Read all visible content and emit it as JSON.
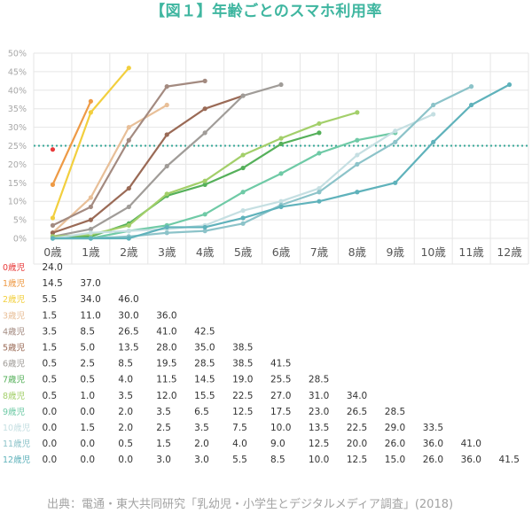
{
  "title": "【図１】年齢ごとのスマホ利用率",
  "source": "出典：電通・東大共同研究「乳幼児・小学生とデジタルメディア調査」(2018)",
  "chart_data": {
    "type": "line",
    "categories": [
      "0歳",
      "1歳",
      "2歳",
      "3歳",
      "4歳",
      "5歳",
      "6歳",
      "7歳",
      "8歳",
      "9歳",
      "10歳",
      "11歳",
      "12歳"
    ],
    "y_ticks": [
      "0%",
      "5%",
      "10%",
      "15%",
      "20%",
      "25%",
      "30%",
      "35%",
      "40%",
      "45%",
      "50%"
    ],
    "ylim": [
      0,
      50
    ],
    "reference_line": 25,
    "grid": true,
    "series": [
      {
        "name": "0歳児",
        "color": "#e83a3a",
        "values": [
          24.0,
          null,
          null,
          null,
          null,
          null,
          null,
          null,
          null,
          null,
          null,
          null,
          null
        ],
        "labels": [
          "24.0",
          "",
          "",
          "",
          "",
          "",
          "",
          "",
          "",
          "",
          "",
          "",
          ""
        ]
      },
      {
        "name": "1歳児",
        "color": "#ee9a45",
        "values": [
          14.5,
          37.0,
          null,
          null,
          null,
          null,
          null,
          null,
          null,
          null,
          null,
          null,
          null
        ],
        "labels": [
          "14.5",
          "37.0",
          "",
          "",
          "",
          "",
          "",
          "",
          "",
          "",
          "",
          "",
          ""
        ]
      },
      {
        "name": "2歳児",
        "color": "#f2cf3e",
        "values": [
          5.5,
          34.0,
          46.0,
          null,
          null,
          null,
          null,
          null,
          null,
          null,
          null,
          null,
          null
        ],
        "labels": [
          "5.5",
          "34.0",
          "46.0",
          "",
          "",
          "",
          "",
          "",
          "",
          "",
          "",
          "",
          ""
        ]
      },
      {
        "name": "3歳児",
        "color": "#e8bf98",
        "values": [
          1.5,
          11.0,
          30.0,
          36.0,
          null,
          null,
          null,
          null,
          null,
          null,
          null,
          null,
          null
        ],
        "labels": [
          "1.5",
          "11.0",
          "30.0",
          "36.0",
          "",
          "",
          "",
          "",
          "",
          "",
          "",
          "",
          ""
        ]
      },
      {
        "name": "4歳児",
        "color": "#a38a80",
        "values": [
          3.5,
          8.5,
          26.5,
          41.0,
          42.5,
          null,
          null,
          null,
          null,
          null,
          null,
          null,
          null
        ],
        "labels": [
          "3.5",
          "8.5",
          "26.5",
          "41.0",
          "42.5",
          "",
          "",
          "",
          "",
          "",
          "",
          "",
          ""
        ]
      },
      {
        "name": "5歳児",
        "color": "#9a6a56",
        "values": [
          1.5,
          5.0,
          13.5,
          28.0,
          35.0,
          38.5,
          null,
          null,
          null,
          null,
          null,
          null,
          null
        ],
        "labels": [
          "1.5",
          "5.0",
          "13.5",
          "28.0",
          "35.0",
          "38.5",
          "",
          "",
          "",
          "",
          "",
          "",
          ""
        ]
      },
      {
        "name": "6歳児",
        "color": "#a09c98",
        "values": [
          0.5,
          2.5,
          8.5,
          19.5,
          28.5,
          38.5,
          41.5,
          null,
          null,
          null,
          null,
          null,
          null
        ],
        "labels": [
          "0.5",
          "2.5",
          "8.5",
          "19.5",
          "28.5",
          "38.5",
          "41.5",
          "",
          "",
          "",
          "",
          "",
          ""
        ]
      },
      {
        "name": "7歳児",
        "color": "#55b05a",
        "values": [
          0.5,
          0.5,
          4.0,
          11.5,
          14.5,
          19.0,
          25.5,
          28.5,
          null,
          null,
          null,
          null,
          null
        ],
        "labels": [
          "0.5",
          "0.5",
          "4.0",
          "11.5",
          "14.5",
          "19.0",
          "25.5",
          "28.5",
          "",
          "",
          "",
          "",
          ""
        ]
      },
      {
        "name": "8歳児",
        "color": "#a3cf6a",
        "values": [
          0.5,
          1.0,
          3.5,
          12.0,
          15.5,
          22.5,
          27.0,
          31.0,
          34.0,
          null,
          null,
          null,
          null
        ],
        "labels": [
          "0.5",
          "1.0",
          "3.5",
          "12.0",
          "15.5",
          "22.5",
          "27.0",
          "31.0",
          "34.0",
          "",
          "",
          "",
          ""
        ]
      },
      {
        "name": "9歳児",
        "color": "#6fcaa6",
        "values": [
          0.0,
          0.0,
          2.0,
          3.5,
          6.5,
          12.5,
          17.5,
          23.0,
          26.5,
          28.5,
          null,
          null,
          null
        ],
        "labels": [
          "0.0",
          "0.0",
          "2.0",
          "3.5",
          "6.5",
          "12.5",
          "17.5",
          "23.0",
          "26.5",
          "28.5",
          "",
          "",
          ""
        ]
      },
      {
        "name": "10歳児",
        "color": "#c5dfe2",
        "values": [
          0.0,
          1.5,
          2.0,
          2.5,
          3.5,
          7.5,
          10.0,
          13.5,
          22.5,
          29.0,
          33.5,
          null,
          null
        ],
        "labels": [
          "0.0",
          "1.5",
          "2.0",
          "2.5",
          "3.5",
          "7.5",
          "10.0",
          "13.5",
          "22.5",
          "29.0",
          "33.5",
          "",
          ""
        ]
      },
      {
        "name": "11歳児",
        "color": "#8cc3c9",
        "values": [
          0.0,
          0.0,
          0.5,
          1.5,
          2.0,
          4.0,
          9.0,
          12.5,
          20.0,
          26.0,
          36.0,
          41.0,
          null
        ],
        "labels": [
          "0.0",
          "0.0",
          "0.5",
          "1.5",
          "2.0",
          "4.0",
          "9.0",
          "12.5",
          "20.0",
          "26.0",
          "36.0",
          "41.0",
          ""
        ]
      },
      {
        "name": "12歳児",
        "color": "#5fb2bb",
        "values": [
          0.0,
          0.0,
          0.0,
          3.0,
          3.0,
          5.5,
          8.5,
          10.0,
          12.5,
          15.0,
          26.0,
          36.0,
          41.5
        ],
        "labels": [
          "0.0",
          "0.0",
          "0.0",
          "3.0",
          "3.0",
          "5.5",
          "8.5",
          "10.0",
          "12.5",
          "15.0",
          "26.0",
          "36.0",
          "41.5"
        ]
      }
    ]
  }
}
